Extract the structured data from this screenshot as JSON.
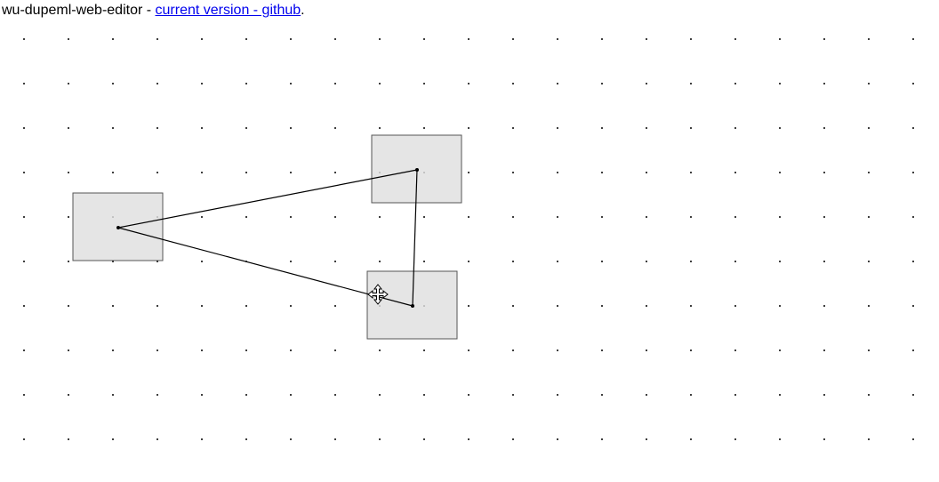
{
  "header": {
    "title": "wu-dupeml-web-editor",
    "separator": " - ",
    "link_label": "current version - github",
    "trailing": "."
  },
  "canvas": {
    "grid_color": "#000000",
    "node_fill": "#e5e5e5",
    "node_stroke": "#555555",
    "edge_color": "#000000",
    "nodes": [
      {
        "id": "node-a"
      },
      {
        "id": "node-b"
      },
      {
        "id": "node-c"
      }
    ],
    "edges": [
      {
        "from": "node-a",
        "to": "node-b"
      },
      {
        "from": "node-a",
        "to": "node-c"
      },
      {
        "from": "node-b",
        "to": "node-c"
      }
    ],
    "cursor": "move-cursor-icon"
  }
}
